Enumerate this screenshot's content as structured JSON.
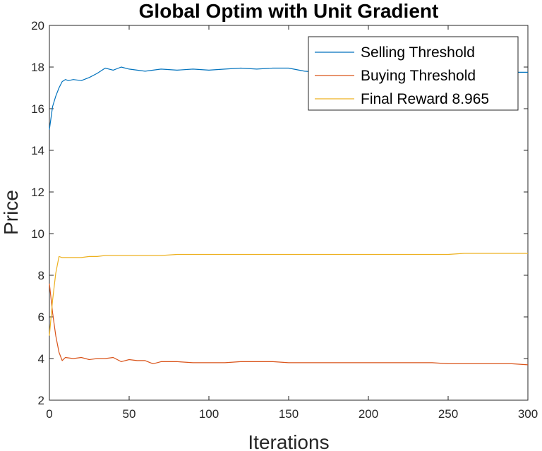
{
  "chart_data": {
    "type": "line",
    "title": "Global Optim with Unit Gradient",
    "xlabel": "Iterations",
    "ylabel": "Price",
    "xlim": [
      0,
      300
    ],
    "ylim": [
      2,
      20
    ],
    "xticks": [
      0,
      50,
      100,
      150,
      200,
      250,
      300
    ],
    "yticks": [
      2,
      4,
      6,
      8,
      10,
      12,
      14,
      16,
      18,
      20
    ],
    "grid": false,
    "legend_position": "top-right",
    "series": [
      {
        "name": "Selling Threshold",
        "color": "#0072BD",
        "x": [
          0,
          2,
          4,
          6,
          8,
          10,
          12,
          15,
          20,
          25,
          30,
          35,
          40,
          45,
          50,
          60,
          70,
          80,
          90,
          100,
          110,
          120,
          130,
          140,
          150,
          160,
          170,
          180,
          190,
          200,
          210,
          220,
          230,
          240,
          250,
          260,
          270,
          280,
          290,
          300
        ],
        "y": [
          15.0,
          16.1,
          16.6,
          17.0,
          17.3,
          17.4,
          17.35,
          17.4,
          17.35,
          17.5,
          17.7,
          17.95,
          17.85,
          18.0,
          17.9,
          17.8,
          17.9,
          17.85,
          17.9,
          17.85,
          17.9,
          17.95,
          17.9,
          17.95,
          17.95,
          17.8,
          17.75,
          17.8,
          17.75,
          17.75,
          17.8,
          17.75,
          17.75,
          17.8,
          17.75,
          17.75,
          17.8,
          17.75,
          17.75,
          17.75
        ]
      },
      {
        "name": "Buying Threshold",
        "color": "#D95319",
        "x": [
          0,
          2,
          4,
          6,
          8,
          10,
          15,
          20,
          25,
          30,
          35,
          40,
          45,
          50,
          55,
          60,
          65,
          70,
          80,
          90,
          100,
          110,
          120,
          130,
          140,
          150,
          160,
          170,
          180,
          190,
          200,
          210,
          220,
          230,
          240,
          250,
          260,
          270,
          280,
          290,
          300
        ],
        "y": [
          7.6,
          6.2,
          5.1,
          4.3,
          3.9,
          4.05,
          4.0,
          4.05,
          3.95,
          4.0,
          4.0,
          4.05,
          3.85,
          3.95,
          3.9,
          3.9,
          3.75,
          3.85,
          3.85,
          3.8,
          3.8,
          3.8,
          3.85,
          3.85,
          3.85,
          3.8,
          3.8,
          3.8,
          3.8,
          3.8,
          3.8,
          3.8,
          3.8,
          3.8,
          3.8,
          3.75,
          3.75,
          3.75,
          3.75,
          3.75,
          3.7
        ]
      },
      {
        "name": "Final Reward 8.965",
        "color": "#EDB120",
        "x": [
          0,
          2,
          4,
          6,
          8,
          10,
          15,
          20,
          25,
          30,
          35,
          40,
          50,
          60,
          70,
          80,
          90,
          100,
          110,
          120,
          130,
          140,
          150,
          160,
          170,
          180,
          190,
          200,
          210,
          220,
          230,
          240,
          250,
          260,
          270,
          280,
          290,
          300
        ],
        "y": [
          5.1,
          6.8,
          8.1,
          8.9,
          8.85,
          8.85,
          8.85,
          8.85,
          8.9,
          8.9,
          8.95,
          8.95,
          8.95,
          8.95,
          8.95,
          9.0,
          9.0,
          9.0,
          9.0,
          9.0,
          9.0,
          9.0,
          9.0,
          9.0,
          9.0,
          9.0,
          9.0,
          9.0,
          9.0,
          9.0,
          9.0,
          9.0,
          9.0,
          9.05,
          9.05,
          9.05,
          9.05,
          9.05
        ]
      }
    ]
  }
}
